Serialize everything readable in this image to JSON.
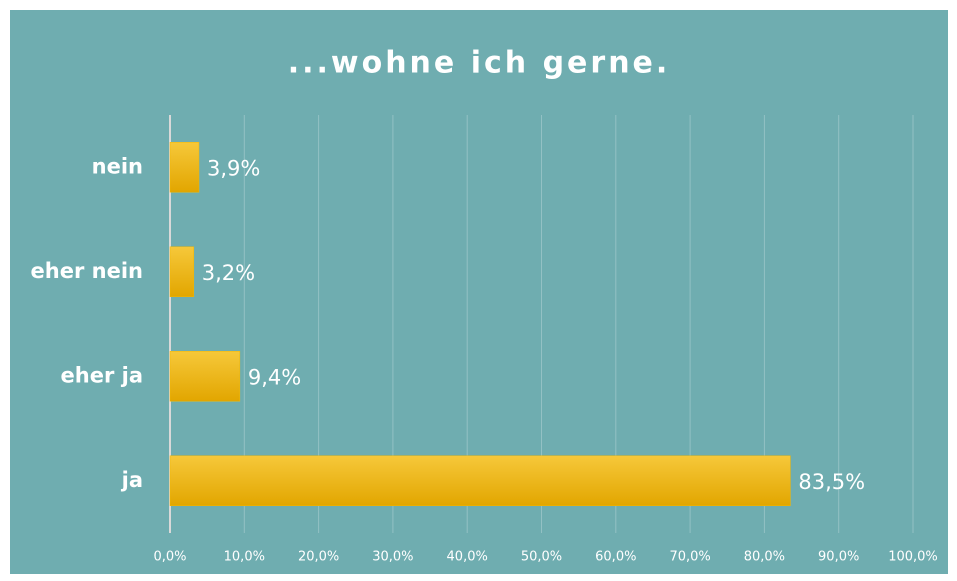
{
  "chart_data": {
    "type": "hbar",
    "title": "...wohne ich gerne.",
    "categories": [
      "nein",
      "eher nein",
      "eher ja",
      "ja"
    ],
    "values": [
      3.9,
      3.2,
      9.4,
      83.5
    ],
    "value_labels": [
      "3,9%",
      "3,2%",
      "9,4%",
      "83,5%"
    ],
    "color": "#f2b705",
    "xlim": [
      0,
      100
    ],
    "xticks": [
      {
        "value": 0,
        "label": "0,0%"
      },
      {
        "value": 10,
        "label": "10,0%"
      },
      {
        "value": 20,
        "label": "20,0%"
      },
      {
        "value": 30,
        "label": "30,0%"
      },
      {
        "value": 40,
        "label": "40,0%"
      },
      {
        "value": 50,
        "label": "50,0%"
      },
      {
        "value": 60,
        "label": "60,0%"
      },
      {
        "value": 70,
        "label": "70,0%"
      },
      {
        "value": 80,
        "label": "80,0%"
      },
      {
        "value": 90,
        "label": "90,0%"
      },
      {
        "value": 100,
        "label": "100,0%"
      }
    ],
    "grid": true
  }
}
